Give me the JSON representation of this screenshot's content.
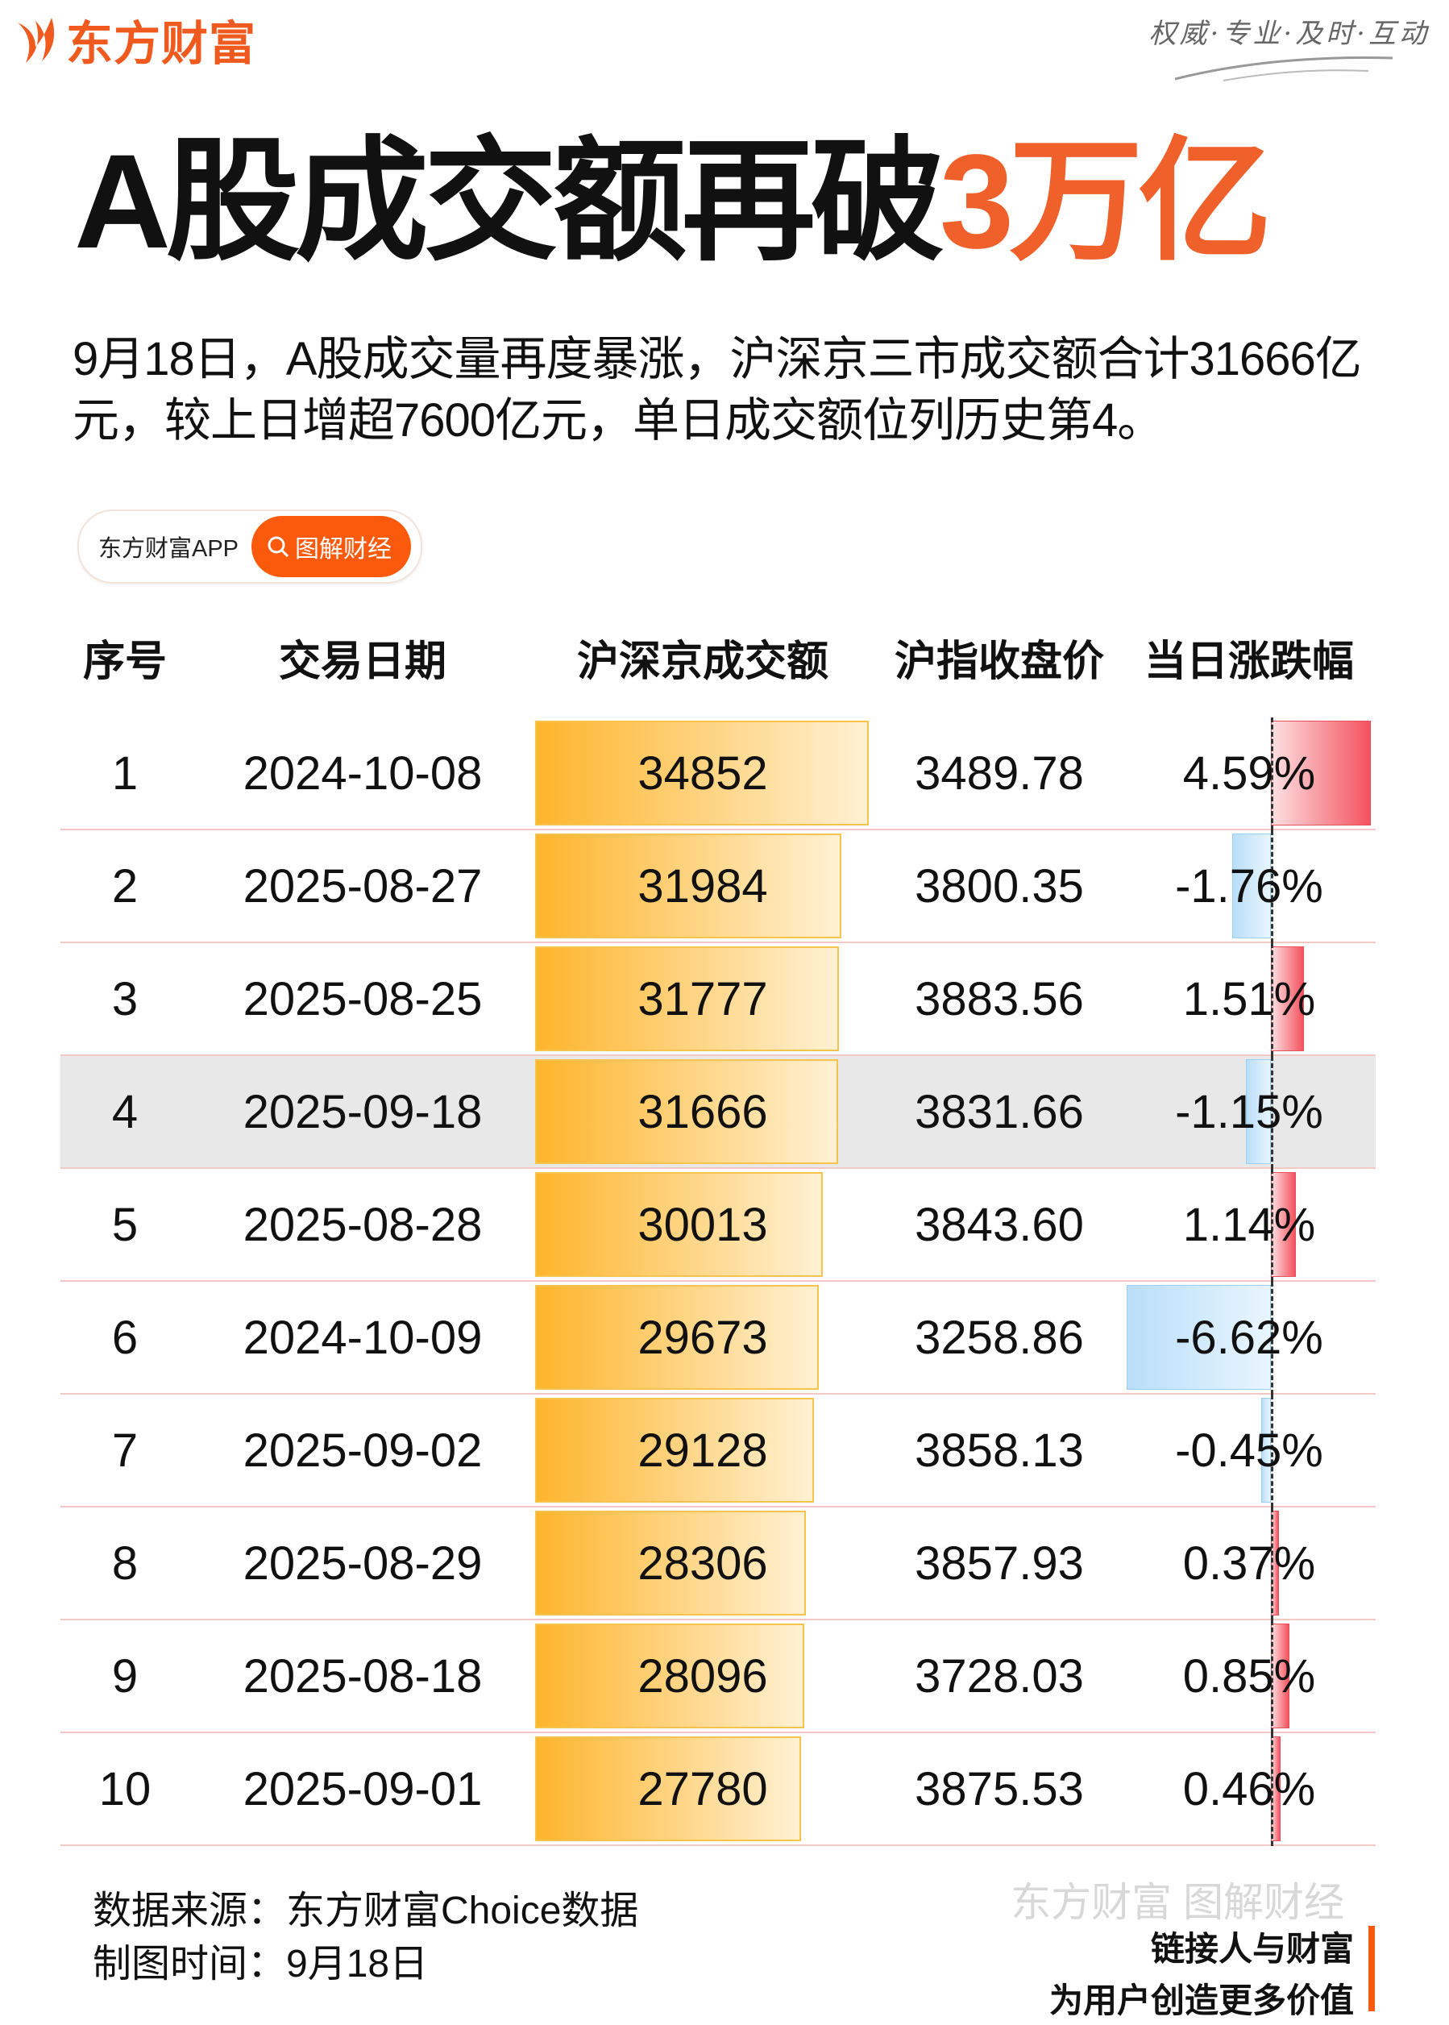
{
  "brand": {
    "name": "东方财富",
    "motto": "权威·专业·及时·互动",
    "accent": "#f05a1e"
  },
  "title": {
    "main": "A股成交额再破",
    "highlight": "3万亿"
  },
  "lead": "9月18日，A股成交量再度暴涨，沪深京三市成交额合计31666亿元，较上日增超7600亿元，单日成交额位列历史第4。",
  "pill": {
    "app": "东方财富APP",
    "tag": "图解财经",
    "icon": "search-icon"
  },
  "table": {
    "headers": [
      "序号",
      "交易日期",
      "沪深京成交额",
      "沪指收盘价",
      "当日涨跌幅"
    ],
    "highlight_rank": "4",
    "rows": [
      {
        "rank": "1",
        "date": "2024-10-08",
        "amount": "34852",
        "close": "3489.78",
        "change": "4.59%",
        "change_value": 4.59
      },
      {
        "rank": "2",
        "date": "2025-08-27",
        "amount": "31984",
        "close": "3800.35",
        "change": "-1.76%",
        "change_value": -1.76
      },
      {
        "rank": "3",
        "date": "2025-08-25",
        "amount": "31777",
        "close": "3883.56",
        "change": "1.51%",
        "change_value": 1.51
      },
      {
        "rank": "4",
        "date": "2025-09-18",
        "amount": "31666",
        "close": "3831.66",
        "change": "-1.15%",
        "change_value": -1.15
      },
      {
        "rank": "5",
        "date": "2025-08-28",
        "amount": "30013",
        "close": "3843.60",
        "change": "1.14%",
        "change_value": 1.14
      },
      {
        "rank": "6",
        "date": "2024-10-09",
        "amount": "29673",
        "close": "3258.86",
        "change": "-6.62%",
        "change_value": -6.62
      },
      {
        "rank": "7",
        "date": "2025-09-02",
        "amount": "29128",
        "close": "3858.13",
        "change": "-0.45%",
        "change_value": -0.45
      },
      {
        "rank": "8",
        "date": "2025-08-29",
        "amount": "28306",
        "close": "3857.93",
        "change": "0.37%",
        "change_value": 0.37
      },
      {
        "rank": "9",
        "date": "2025-08-18",
        "amount": "28096",
        "close": "3728.03",
        "change": "0.85%",
        "change_value": 0.85
      },
      {
        "rank": "10",
        "date": "2025-09-01",
        "amount": "27780",
        "close": "3875.53",
        "change": "0.46%",
        "change_value": 0.46
      }
    ]
  },
  "footer": {
    "source": "数据来源：东方财富Choice数据",
    "made": "制图时间：9月18日",
    "watermark": "东方财富 图解财经",
    "slogan1": "链接人与财富",
    "slogan2": "为用户创造更多价值"
  }
}
